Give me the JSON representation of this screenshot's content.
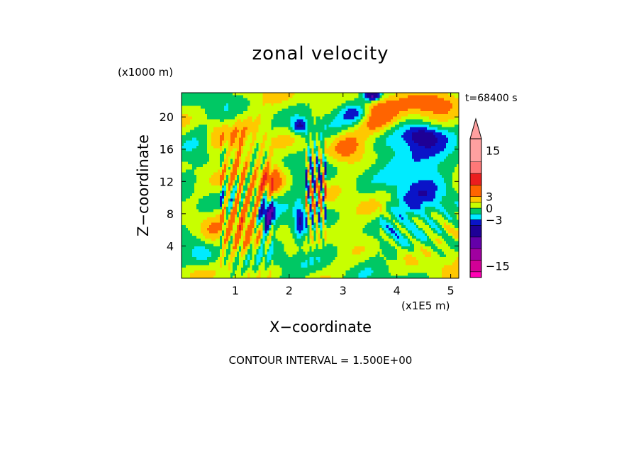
{
  "chart_data": {
    "type": "heatmap",
    "title": "zonal velocity",
    "xlabel": "X−coordinate",
    "ylabel": "Z−coordinate",
    "x_units": "(x1E5 m)",
    "y_units": "(x1000 m)",
    "x_range": [
      0,
      5.15
    ],
    "y_range": [
      0,
      23
    ],
    "x_ticks": [
      {
        "value": 1,
        "label": "1"
      },
      {
        "value": 2,
        "label": "2"
      },
      {
        "value": 3,
        "label": "3"
      },
      {
        "value": 4,
        "label": "4"
      },
      {
        "value": 5,
        "label": "5"
      }
    ],
    "y_ticks": [
      {
        "value": 4,
        "label": "4"
      },
      {
        "value": 8,
        "label": "8"
      },
      {
        "value": 12,
        "label": "12"
      },
      {
        "value": 16,
        "label": "16"
      },
      {
        "value": 20,
        "label": "20"
      }
    ],
    "time_label": "t=68400 s",
    "contour_interval_text": "CONTOUR INTERVAL = 1.500E+00",
    "colorbar": {
      "min": -18,
      "max": 18,
      "interval": 1.5,
      "labels": [
        {
          "value": 15,
          "label": "15"
        },
        {
          "value": 3,
          "label": "3"
        },
        {
          "value": 0,
          "label": "0"
        },
        {
          "value": -3,
          "label": "−3"
        },
        {
          "value": -15,
          "label": "−15"
        }
      ],
      "levels": [
        {
          "from": -18,
          "to": -16.5,
          "color": "#ff00b4"
        },
        {
          "from": -16.5,
          "to": -13.5,
          "color": "#d20096"
        },
        {
          "from": -13.5,
          "to": -10.5,
          "color": "#a000a0"
        },
        {
          "from": -10.5,
          "to": -7.5,
          "color": "#6400aa"
        },
        {
          "from": -7.5,
          "to": -4.5,
          "color": "#1e0096"
        },
        {
          "from": -4.5,
          "to": -3,
          "color": "#0a14c8"
        },
        {
          "from": -3,
          "to": -1.5,
          "color": "#00ebff"
        },
        {
          "from": -1.5,
          "to": 0,
          "color": "#00c864"
        },
        {
          "from": 0,
          "to": 1.5,
          "color": "#c8ff00"
        },
        {
          "from": 1.5,
          "to": 3,
          "color": "#ffc800"
        },
        {
          "from": 3,
          "to": 6,
          "color": "#ff6400"
        },
        {
          "from": 6,
          "to": 9,
          "color": "#eb1e1e"
        },
        {
          "from": 9,
          "to": 12,
          "color": "#ff7878"
        },
        {
          "from": 12,
          "to": 18,
          "color": "#ffa0a0"
        }
      ]
    }
  }
}
